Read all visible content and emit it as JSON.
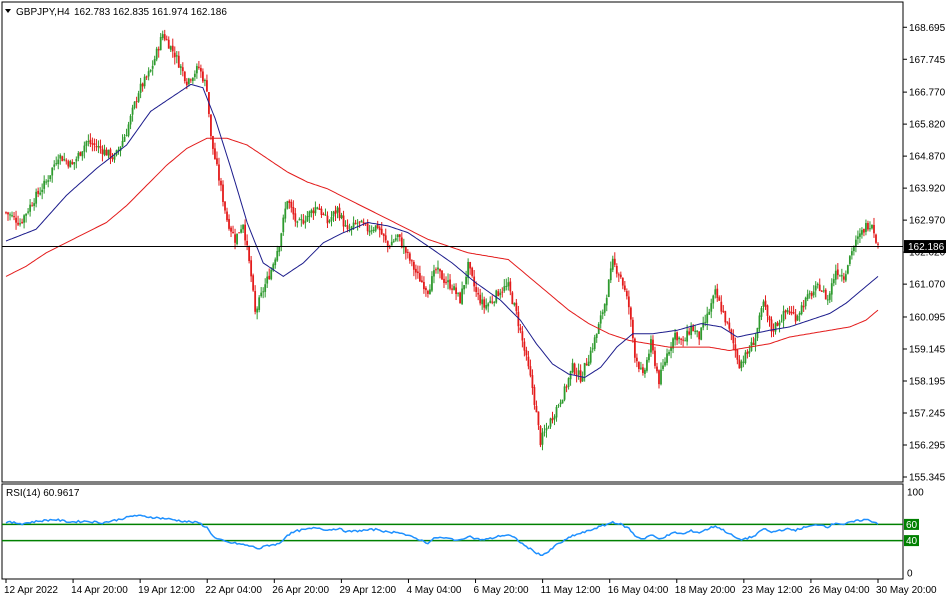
{
  "header": {
    "symbol": "GBPJPY,H4",
    "ohlc": "162.783 162.835 161.974 162.186"
  },
  "rsi_header": "RSI(14) 60.9617",
  "colors": {
    "bull": "#2e9a2e",
    "bear": "#e31b1b",
    "ma_fast": "#1c1c8c",
    "ma_slow": "#e31b1b",
    "rsi_line": "#1e90ff",
    "rsi_levels": "#008000",
    "price_line": "#000000",
    "price_box": "#000000",
    "price_box_text": "#ffffff"
  },
  "chart_data": [
    {
      "type": "candlestick",
      "title": "GBPJPY,H4",
      "ylim": [
        155.345,
        168.97
      ],
      "y_ticks": [
        "168.695",
        "167.745",
        "166.770",
        "165.820",
        "164.870",
        "163.920",
        "162.970",
        "162.020",
        "161.070",
        "160.095",
        "159.145",
        "158.195",
        "157.245",
        "156.295",
        "155.345"
      ],
      "current_price": "162.186",
      "x_ticks": [
        "12 Apr 2022",
        "14 Apr 20:00",
        "19 Apr 12:00",
        "22 Apr 04:00",
        "26 Apr 20:00",
        "29 Apr 12:00",
        "4 May 04:00",
        "6 May 20:00",
        "11 May 12:00",
        "16 May 04:00",
        "18 May 20:00",
        "23 May 12:00",
        "26 May 04:00",
        "30 May 20:00"
      ],
      "close_path": [
        [
          0,
          163.2
        ],
        [
          7,
          162.9
        ],
        [
          14,
          163.6
        ],
        [
          20,
          164.1
        ],
        [
          26,
          164.9
        ],
        [
          33,
          164.6
        ],
        [
          40,
          165.3
        ],
        [
          47,
          165.1
        ],
        [
          54,
          164.8
        ],
        [
          60,
          165.6
        ],
        [
          66,
          166.8
        ],
        [
          72,
          167.4
        ],
        [
          78,
          168.5
        ],
        [
          84,
          167.9
        ],
        [
          90,
          167.1
        ],
        [
          96,
          167.5
        ],
        [
          100,
          166.9
        ],
        [
          102,
          165.4
        ],
        [
          106,
          164.2
        ],
        [
          110,
          163.0
        ],
        [
          114,
          162.4
        ],
        [
          118,
          162.9
        ],
        [
          122,
          161.3
        ],
        [
          124,
          160.2
        ],
        [
          128,
          160.9
        ],
        [
          132,
          161.5
        ],
        [
          136,
          162.3
        ],
        [
          140,
          163.6
        ],
        [
          145,
          162.8
        ],
        [
          150,
          163.1
        ],
        [
          155,
          163.4
        ],
        [
          160,
          162.9
        ],
        [
          165,
          163.3
        ],
        [
          170,
          162.6
        ],
        [
          175,
          162.9
        ],
        [
          180,
          162.7
        ],
        [
          185,
          162.8
        ],
        [
          190,
          162.2
        ],
        [
          195,
          162.5
        ],
        [
          200,
          161.9
        ],
        [
          205,
          161.3
        ],
        [
          210,
          160.9
        ],
        [
          214,
          161.5
        ],
        [
          218,
          161.2
        ],
        [
          222,
          161.0
        ],
        [
          226,
          160.6
        ],
        [
          230,
          161.6
        ],
        [
          234,
          160.8
        ],
        [
          238,
          160.4
        ],
        [
          242,
          160.6
        ],
        [
          246,
          160.9
        ],
        [
          250,
          161.0
        ],
        [
          254,
          160.2
        ],
        [
          258,
          159.1
        ],
        [
          262,
          158.0
        ],
        [
          266,
          156.4
        ],
        [
          270,
          156.9
        ],
        [
          274,
          157.4
        ],
        [
          278,
          157.9
        ],
        [
          282,
          158.6
        ],
        [
          286,
          158.3
        ],
        [
          290,
          158.9
        ],
        [
          294,
          159.6
        ],
        [
          298,
          160.5
        ],
        [
          302,
          161.7
        ],
        [
          306,
          161.3
        ],
        [
          310,
          160.4
        ],
        [
          313,
          159.0
        ],
        [
          317,
          158.3
        ],
        [
          321,
          159.3
        ],
        [
          325,
          158.2
        ],
        [
          329,
          159.0
        ],
        [
          333,
          159.6
        ],
        [
          337,
          159.3
        ],
        [
          341,
          159.8
        ],
        [
          345,
          159.5
        ],
        [
          349,
          160.1
        ],
        [
          353,
          160.8
        ],
        [
          357,
          160.2
        ],
        [
          361,
          159.5
        ],
        [
          365,
          158.7
        ],
        [
          369,
          159.0
        ],
        [
          373,
          159.5
        ],
        [
          377,
          160.5
        ],
        [
          381,
          159.7
        ],
        [
          385,
          160.0
        ],
        [
          389,
          160.3
        ],
        [
          393,
          160.1
        ],
        [
          397,
          160.5
        ],
        [
          401,
          160.8
        ],
        [
          405,
          161.0
        ],
        [
          409,
          160.6
        ],
        [
          413,
          161.5
        ],
        [
          417,
          161.3
        ],
        [
          421,
          162.1
        ],
        [
          425,
          162.5
        ],
        [
          428,
          162.8
        ],
        [
          431,
          162.9
        ],
        [
          434,
          162.186
        ]
      ],
      "ma_fast": [
        [
          0,
          162.35
        ],
        [
          15,
          162.7
        ],
        [
          30,
          163.7
        ],
        [
          45,
          164.5
        ],
        [
          60,
          165.2
        ],
        [
          72,
          166.2
        ],
        [
          82,
          166.6
        ],
        [
          92,
          167.0
        ],
        [
          98,
          166.9
        ],
        [
          104,
          166.0
        ],
        [
          112,
          164.5
        ],
        [
          120,
          162.9
        ],
        [
          128,
          161.7
        ],
        [
          138,
          161.3
        ],
        [
          148,
          161.7
        ],
        [
          158,
          162.3
        ],
        [
          168,
          162.6
        ],
        [
          180,
          162.9
        ],
        [
          190,
          162.8
        ],
        [
          200,
          162.6
        ],
        [
          210,
          162.2
        ],
        [
          222,
          161.7
        ],
        [
          234,
          161.1
        ],
        [
          246,
          160.6
        ],
        [
          256,
          160.0
        ],
        [
          264,
          159.3
        ],
        [
          272,
          158.7
        ],
        [
          280,
          158.4
        ],
        [
          288,
          158.3
        ],
        [
          296,
          158.6
        ],
        [
          304,
          159.2
        ],
        [
          312,
          159.6
        ],
        [
          322,
          159.6
        ],
        [
          334,
          159.7
        ],
        [
          346,
          159.9
        ],
        [
          356,
          159.8
        ],
        [
          364,
          159.5
        ],
        [
          372,
          159.6
        ],
        [
          380,
          159.7
        ],
        [
          390,
          159.8
        ],
        [
          400,
          160.0
        ],
        [
          410,
          160.2
        ],
        [
          418,
          160.5
        ],
        [
          426,
          160.9
        ],
        [
          434,
          161.3
        ]
      ],
      "ma_slow": [
        [
          0,
          161.3
        ],
        [
          10,
          161.6
        ],
        [
          20,
          162.0
        ],
        [
          30,
          162.3
        ],
        [
          40,
          162.6
        ],
        [
          50,
          162.9
        ],
        [
          60,
          163.4
        ],
        [
          70,
          164.0
        ],
        [
          80,
          164.6
        ],
        [
          90,
          165.1
        ],
        [
          100,
          165.4
        ],
        [
          110,
          165.4
        ],
        [
          120,
          165.2
        ],
        [
          130,
          164.8
        ],
        [
          140,
          164.4
        ],
        [
          150,
          164.1
        ],
        [
          160,
          163.9
        ],
        [
          170,
          163.6
        ],
        [
          180,
          163.3
        ],
        [
          190,
          163.0
        ],
        [
          200,
          162.7
        ],
        [
          210,
          162.4
        ],
        [
          220,
          162.2
        ],
        [
          230,
          162.0
        ],
        [
          240,
          161.9
        ],
        [
          250,
          161.8
        ],
        [
          260,
          161.3
        ],
        [
          270,
          160.8
        ],
        [
          280,
          160.3
        ],
        [
          290,
          159.9
        ],
        [
          300,
          159.6
        ],
        [
          310,
          159.4
        ],
        [
          320,
          159.3
        ],
        [
          330,
          159.2
        ],
        [
          340,
          159.2
        ],
        [
          350,
          159.2
        ],
        [
          360,
          159.1
        ],
        [
          370,
          159.2
        ],
        [
          380,
          159.3
        ],
        [
          390,
          159.5
        ],
        [
          400,
          159.6
        ],
        [
          410,
          159.7
        ],
        [
          420,
          159.8
        ],
        [
          428,
          160.0
        ],
        [
          434,
          160.3
        ]
      ]
    },
    {
      "type": "line",
      "title": "RSI(14) 60.9617",
      "ylim": [
        0,
        100
      ],
      "y_ticks": [
        "100",
        "60",
        "40",
        "0"
      ],
      "levels": [
        60,
        40
      ],
      "series": [
        {
          "name": "RSI(14)",
          "values": [
            [
              0,
              63
            ],
            [
              8,
              61
            ],
            [
              16,
              64
            ],
            [
              24,
              66
            ],
            [
              32,
              63
            ],
            [
              40,
              64
            ],
            [
              48,
              62
            ],
            [
              56,
              66
            ],
            [
              64,
              71
            ],
            [
              72,
              69
            ],
            [
              80,
              67
            ],
            [
              88,
              64
            ],
            [
              96,
              62
            ],
            [
              100,
              56
            ],
            [
              104,
              43
            ],
            [
              110,
              38
            ],
            [
              116,
              36
            ],
            [
              122,
              33
            ],
            [
              126,
              30
            ],
            [
              130,
              34
            ],
            [
              136,
              36
            ],
            [
              140,
              47
            ],
            [
              145,
              52
            ],
            [
              150,
              54
            ],
            [
              155,
              56
            ],
            [
              160,
              53
            ],
            [
              165,
              55
            ],
            [
              170,
              51
            ],
            [
              175,
              52
            ],
            [
              180,
              53
            ],
            [
              185,
              54
            ],
            [
              190,
              50
            ],
            [
              195,
              51
            ],
            [
              200,
              46
            ],
            [
              205,
              42
            ],
            [
              210,
              37
            ],
            [
              214,
              44
            ],
            [
              218,
              43
            ],
            [
              222,
              42
            ],
            [
              226,
              40
            ],
            [
              230,
              46
            ],
            [
              234,
              42
            ],
            [
              238,
              41
            ],
            [
              242,
              43
            ],
            [
              246,
              46
            ],
            [
              250,
              47
            ],
            [
              254,
              42
            ],
            [
              258,
              34
            ],
            [
              262,
              28
            ],
            [
              266,
              22
            ],
            [
              270,
              26
            ],
            [
              274,
              35
            ],
            [
              278,
              40
            ],
            [
              282,
              46
            ],
            [
              286,
              49
            ],
            [
              290,
              52
            ],
            [
              294,
              56
            ],
            [
              298,
              59
            ],
            [
              302,
              63
            ],
            [
              306,
              60
            ],
            [
              310,
              55
            ],
            [
              313,
              46
            ],
            [
              317,
              42
            ],
            [
              321,
              47
            ],
            [
              325,
              42
            ],
            [
              329,
              46
            ],
            [
              333,
              50
            ],
            [
              337,
              48
            ],
            [
              341,
              52
            ],
            [
              345,
              50
            ],
            [
              349,
              54
            ],
            [
              353,
              58
            ],
            [
              357,
              53
            ],
            [
              361,
              47
            ],
            [
              365,
              41
            ],
            [
              369,
              43
            ],
            [
              373,
              46
            ],
            [
              377,
              55
            ],
            [
              381,
              50
            ],
            [
              385,
              53
            ],
            [
              389,
              54
            ],
            [
              393,
              53
            ],
            [
              397,
              56
            ],
            [
              401,
              58
            ],
            [
              405,
              60
            ],
            [
              409,
              57
            ],
            [
              413,
              62
            ],
            [
              417,
              60
            ],
            [
              421,
              63
            ],
            [
              425,
              65
            ],
            [
              428,
              66
            ],
            [
              431,
              64
            ],
            [
              434,
              61
            ]
          ]
        }
      ]
    }
  ]
}
